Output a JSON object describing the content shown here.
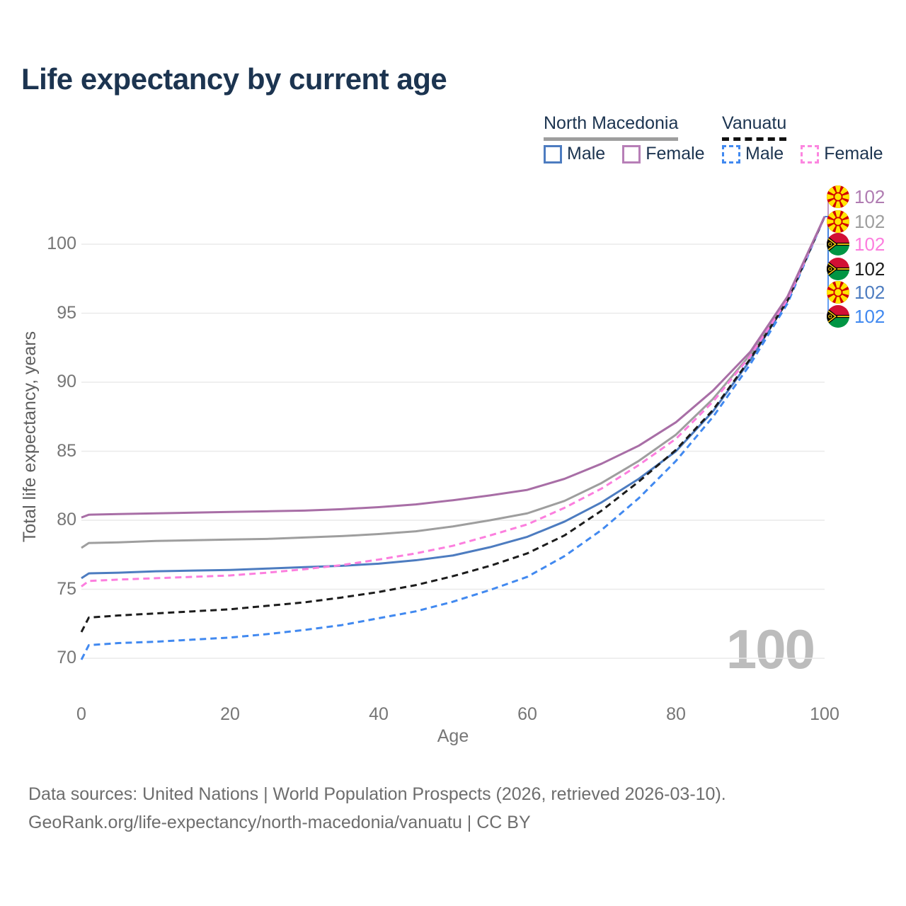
{
  "title": "Life expectancy by current age",
  "legend": {
    "groups": [
      {
        "id": "north-macedonia",
        "label": "North Macedonia",
        "line_style": "solid",
        "line_color": "#9e9e9e",
        "items": [
          {
            "label": "Male",
            "color": "#4d7cc0",
            "dashed": false
          },
          {
            "label": "Female",
            "color": "#b77fb7",
            "dashed": false
          }
        ]
      },
      {
        "id": "vanuatu",
        "label": "Vanuatu",
        "line_style": "dashed",
        "line_color": "#111111",
        "items": [
          {
            "label": "Male",
            "color": "#4189f0",
            "dashed": true
          },
          {
            "label": "Female",
            "color": "#fc86e0",
            "dashed": true
          }
        ]
      }
    ]
  },
  "axes": {
    "x_label": "Age",
    "y_label": "Total life expectancy, years"
  },
  "annotations": {
    "age_counter": "100"
  },
  "footer": {
    "line1": "Data sources: United Nations | World Population Prospects (2026, retrieved 2026-03-10).",
    "line2": "GeoRank.org/life-expectancy/north-macedonia/vanuatu | CC BY"
  },
  "chart_data": {
    "type": "line",
    "title": "Life expectancy by current age",
    "xlabel": "Age",
    "ylabel": "Total life expectancy, years",
    "xlim": [
      0,
      100
    ],
    "ylim": [
      68,
      103
    ],
    "x_ticks": [
      0,
      20,
      40,
      60,
      80,
      100
    ],
    "y_ticks": [
      70,
      75,
      80,
      85,
      90,
      95,
      100
    ],
    "grid": "horizontal",
    "grid_color": "#eaeaea",
    "x": [
      0,
      1,
      5,
      10,
      15,
      20,
      25,
      30,
      35,
      40,
      45,
      50,
      55,
      60,
      65,
      70,
      75,
      80,
      85,
      90,
      95,
      100
    ],
    "series": [
      {
        "id": "north-macedonia-all",
        "name": "North Macedonia",
        "country": "North Macedonia",
        "sex": "Both",
        "color": "#9e9e9e",
        "dashed": false,
        "values": [
          78.0,
          78.35,
          78.4,
          78.5,
          78.55,
          78.6,
          78.65,
          78.75,
          78.85,
          79.0,
          79.2,
          79.55,
          80.0,
          80.5,
          81.4,
          82.7,
          84.3,
          86.2,
          88.8,
          92.0,
          96.1,
          102
        ]
      },
      {
        "id": "north-macedonia-male",
        "name": "North Macedonia Male",
        "country": "North Macedonia",
        "sex": "Male",
        "color": "#4d7cc0",
        "dashed": false,
        "values": [
          75.8,
          76.15,
          76.2,
          76.3,
          76.35,
          76.4,
          76.5,
          76.6,
          76.7,
          76.85,
          77.1,
          77.45,
          78.05,
          78.8,
          79.9,
          81.3,
          83.0,
          85.0,
          87.9,
          91.6,
          95.9,
          102
        ]
      },
      {
        "id": "vanuatu-male",
        "name": "Vanuatu Male",
        "country": "Vanuatu",
        "sex": "Male",
        "color": "#4189f0",
        "dashed": true,
        "values": [
          69.9,
          70.95,
          71.1,
          71.2,
          71.35,
          71.5,
          71.75,
          72.05,
          72.4,
          72.9,
          73.4,
          74.1,
          74.95,
          75.9,
          77.4,
          79.3,
          81.6,
          84.3,
          87.5,
          91.3,
          95.7,
          102
        ]
      },
      {
        "id": "vanuatu-all",
        "name": "Vanuatu",
        "country": "Vanuatu",
        "sex": "Both",
        "color": "#1c1c1c",
        "dashed": true,
        "values": [
          71.9,
          72.95,
          73.1,
          73.25,
          73.4,
          73.55,
          73.8,
          74.05,
          74.4,
          74.8,
          75.3,
          75.95,
          76.7,
          77.6,
          78.9,
          80.7,
          82.8,
          85.1,
          88.0,
          91.7,
          95.9,
          102
        ]
      },
      {
        "id": "vanuatu-female",
        "name": "Vanuatu Female",
        "country": "Vanuatu",
        "sex": "Female",
        "color": "#fc7ede",
        "dashed": true,
        "values": [
          75.2,
          75.6,
          75.7,
          75.8,
          75.9,
          76.0,
          76.2,
          76.45,
          76.75,
          77.15,
          77.6,
          78.15,
          78.9,
          79.7,
          80.9,
          82.3,
          84.0,
          85.9,
          88.6,
          91.9,
          96.0,
          102
        ]
      },
      {
        "id": "north-macedonia-female",
        "name": "North Macedonia Female",
        "country": "North Macedonia",
        "sex": "Female",
        "color": "#a86ea6",
        "dashed": false,
        "values": [
          80.2,
          80.4,
          80.45,
          80.5,
          80.55,
          80.6,
          80.65,
          80.7,
          80.8,
          80.95,
          81.15,
          81.45,
          81.8,
          82.2,
          83.0,
          84.1,
          85.4,
          87.1,
          89.4,
          92.2,
          96.2,
          102
        ]
      }
    ],
    "end_labels": [
      {
        "text": "102",
        "value": 102,
        "series": "North Macedonia Female",
        "flag": "mk",
        "color": "#b07cb2",
        "row_y": 278
      },
      {
        "text": "102",
        "value": 102,
        "series": "North Macedonia",
        "flag": "mk",
        "color": "#9e9e9e",
        "row_y": 313
      },
      {
        "text": "102",
        "value": 102,
        "series": "Vanuatu Female",
        "flag": "vu",
        "color": "#fc7ede",
        "row_y": 345
      },
      {
        "text": "102",
        "value": 102,
        "series": "Vanuatu",
        "flag": "vu",
        "color": "#1c1c1c",
        "row_y": 380
      },
      {
        "text": "102",
        "value": 102,
        "series": "North Macedonia Male",
        "flag": "mk",
        "color": "#4d7cc0",
        "row_y": 413
      },
      {
        "text": "102",
        "value": 102,
        "series": "Vanuatu Male",
        "flag": "vu",
        "color": "#4189f0",
        "row_y": 447
      }
    ],
    "legend_position": "top-right"
  }
}
